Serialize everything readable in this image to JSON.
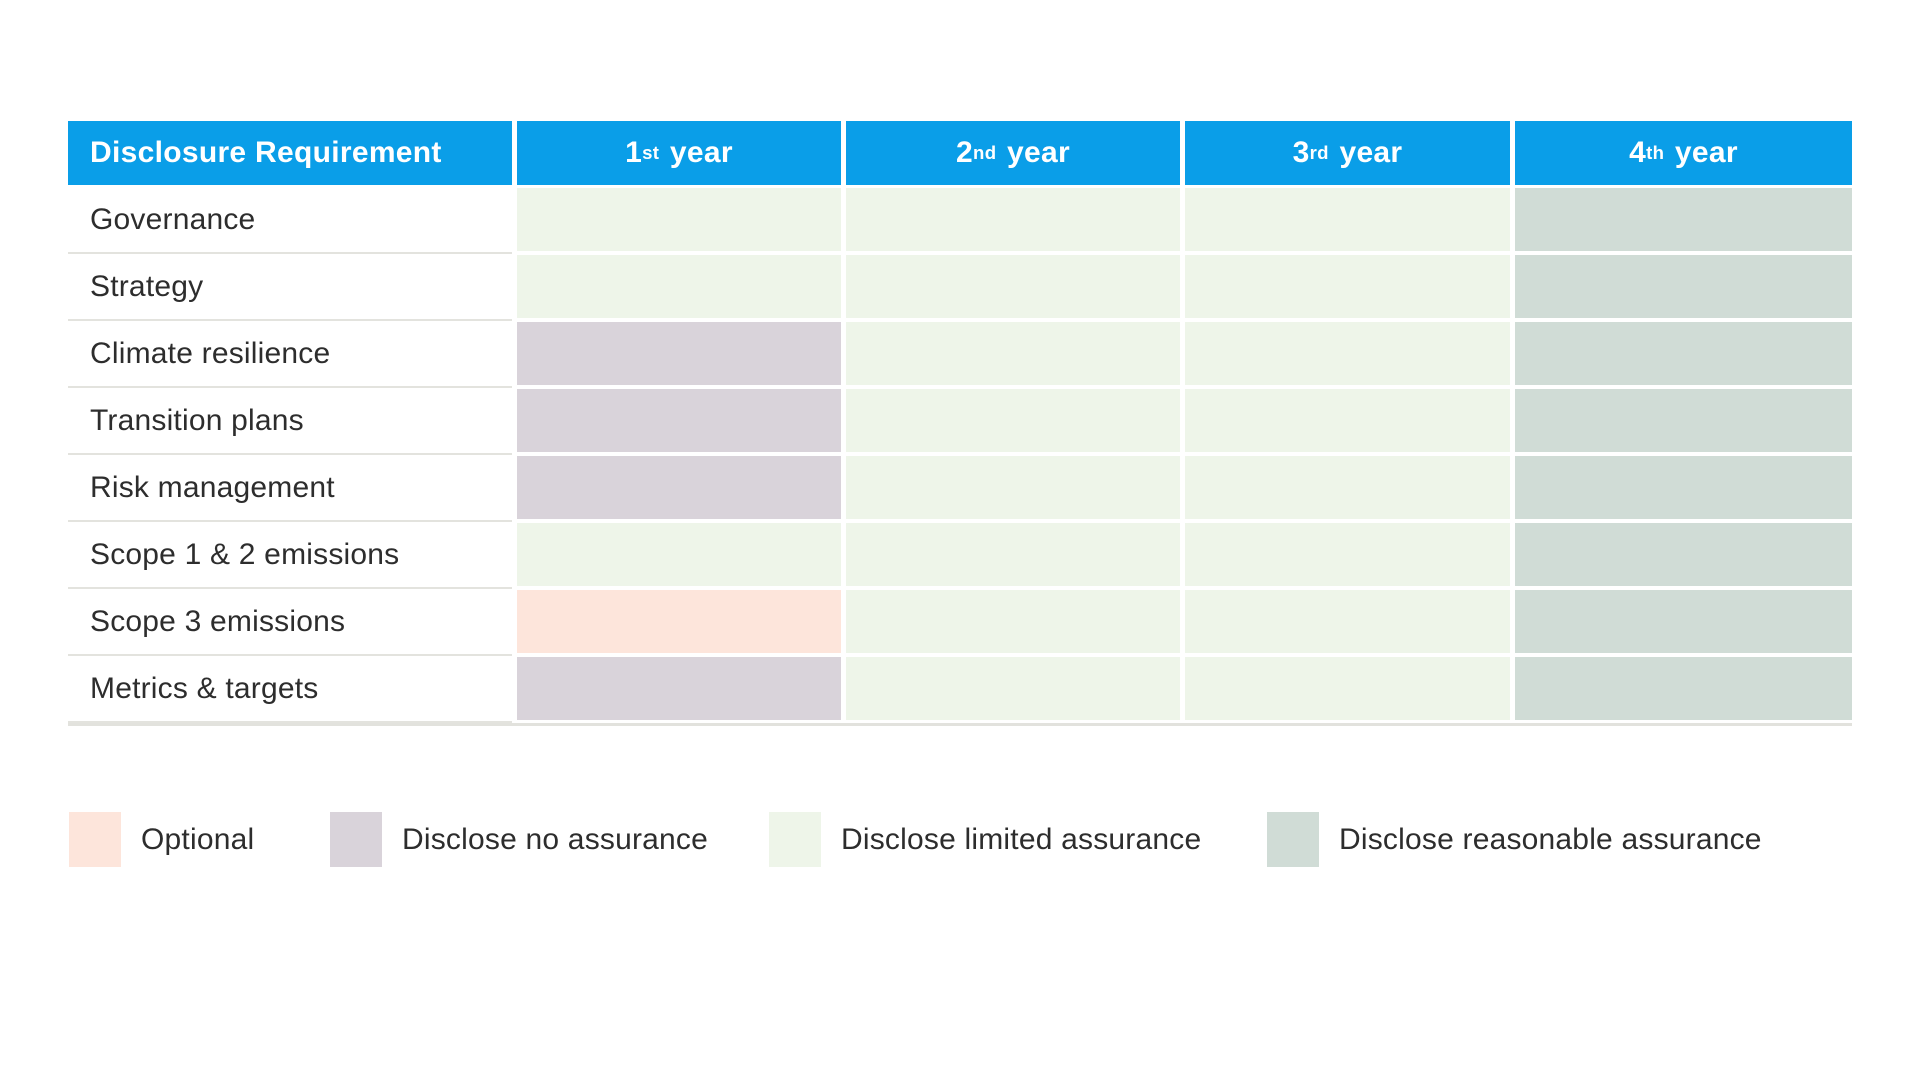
{
  "colors": {
    "header": "#0a9ee8",
    "header_text": "#ffffff",
    "optional": "#fde5db",
    "none": "#d9d3da",
    "limited": "#eef5e9",
    "reasonable": "#d0dcd6",
    "label_text": "#2d2d2d",
    "row_separator": "#e3e3de"
  },
  "table": {
    "header": {
      "requirement_label": "Disclosure Requirement"
    },
    "columns": [
      {
        "num": "1",
        "ordinal": "st",
        "word": "year"
      },
      {
        "num": "2",
        "ordinal": "nd",
        "word": "year"
      },
      {
        "num": "3",
        "ordinal": "rd",
        "word": "year"
      },
      {
        "num": "4",
        "ordinal": "th",
        "word": "year"
      }
    ],
    "rows": [
      {
        "label": "Governance",
        "years": [
          "limited",
          "limited",
          "limited",
          "reasonable"
        ]
      },
      {
        "label": "Strategy",
        "years": [
          "limited",
          "limited",
          "limited",
          "reasonable"
        ]
      },
      {
        "label": "Climate resilience",
        "years": [
          "none",
          "limited",
          "limited",
          "reasonable"
        ]
      },
      {
        "label": "Transition plans",
        "years": [
          "none",
          "limited",
          "limited",
          "reasonable"
        ]
      },
      {
        "label": "Risk management",
        "years": [
          "none",
          "limited",
          "limited",
          "reasonable"
        ]
      },
      {
        "label": "Scope 1 & 2 emissions",
        "years": [
          "limited",
          "limited",
          "limited",
          "reasonable"
        ]
      },
      {
        "label": "Scope 3 emissions",
        "years": [
          "optional",
          "limited",
          "limited",
          "reasonable"
        ]
      },
      {
        "label": "Metrics & targets",
        "years": [
          "none",
          "limited",
          "limited",
          "reasonable"
        ]
      }
    ]
  },
  "legend": {
    "items": [
      {
        "key": "optional",
        "label": "Optional"
      },
      {
        "key": "none",
        "label": "Disclose no assurance"
      },
      {
        "key": "limited",
        "label": "Disclose limited assurance"
      },
      {
        "key": "reasonable",
        "label": "Disclose reasonable assurance"
      }
    ]
  }
}
